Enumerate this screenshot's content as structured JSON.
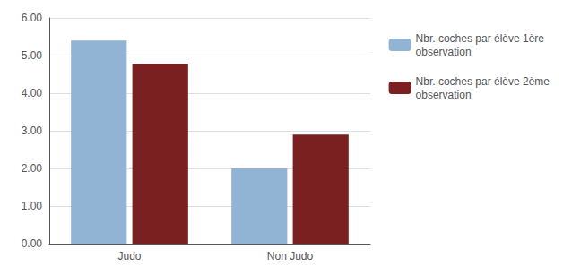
{
  "chart_data": {
    "type": "bar",
    "categories": [
      "Judo",
      "Non Judo"
    ],
    "series": [
      {
        "name": "Nbr. coches par élève 1ère\nobservation",
        "color": "#92b4d4",
        "values": [
          5.4,
          2.0
        ]
      },
      {
        "name": "Nbr. coches par élève 2ème\nobservation",
        "color": "#7b2020",
        "values": [
          4.78,
          2.9
        ]
      }
    ],
    "ylim": [
      0,
      6.0
    ],
    "yticks": [
      {
        "value": 0.0,
        "label": "0.00"
      },
      {
        "value": 1.0,
        "label": "1.00"
      },
      {
        "value": 2.0,
        "label": "2.00"
      },
      {
        "value": 3.0,
        "label": "3.00"
      },
      {
        "value": 4.0,
        "label": "4.00"
      },
      {
        "value": 5.0,
        "label": "5.00"
      },
      {
        "value": 6.0,
        "label": "6.00"
      }
    ],
    "grid": true,
    "legend": "upper right"
  }
}
